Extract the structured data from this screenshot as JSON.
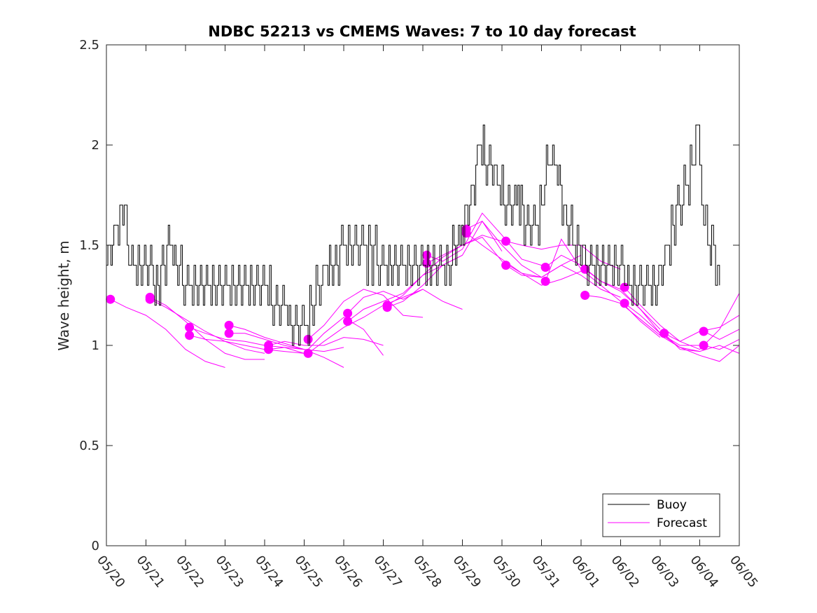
{
  "chart_data": {
    "type": "line",
    "title": "NDBC 52213 vs CMEMS Waves: 7 to 10 day forecast",
    "xlabel": "",
    "ylabel": "Wave height, m",
    "x_ticks": [
      "05/20",
      "05/21",
      "05/22",
      "05/23",
      "05/24",
      "05/25",
      "05/26",
      "05/27",
      "05/28",
      "05/29",
      "05/30",
      "05/31",
      "06/01",
      "06/02",
      "06/03",
      "06/04",
      "06/05"
    ],
    "y_ticks": [
      "0",
      "0.5",
      "1",
      "1.5",
      "2",
      "2.5"
    ],
    "xlim_days": [
      0,
      16
    ],
    "ylim": [
      0,
      2.5
    ],
    "grid": false,
    "legend": {
      "position": "bottom-right",
      "entries": [
        "Buoy",
        "Forecast"
      ]
    },
    "colors": {
      "buoy": "#000000",
      "forecast": "#ff00ff"
    },
    "buoy": {
      "name": "Buoy",
      "x": [
        0.0,
        0.3,
        0.45,
        0.6,
        0.8,
        1.0,
        1.3,
        1.6,
        2.0,
        2.3,
        2.6,
        3.0,
        3.3,
        3.6,
        4.0,
        4.25,
        4.5,
        4.7,
        4.9,
        5.0,
        5.1,
        5.3,
        5.6,
        5.9,
        6.2,
        6.5,
        6.8,
        7.1,
        7.4,
        7.7,
        8.0,
        8.3,
        8.6,
        8.9,
        9.1,
        9.3,
        9.45,
        9.6,
        9.8,
        10.0,
        10.2,
        10.4,
        10.6,
        10.8,
        11.0,
        11.2,
        11.4,
        11.6,
        11.9,
        12.2,
        12.5,
        12.8,
        13.1,
        13.4,
        13.7,
        14.0,
        14.2,
        14.4,
        14.6,
        14.8,
        14.9,
        15.0,
        15.1,
        15.2,
        15.3,
        15.4,
        15.5
      ],
      "y": [
        1.4,
        1.6,
        1.7,
        1.4,
        1.4,
        1.4,
        1.3,
        1.5,
        1.3,
        1.3,
        1.3,
        1.3,
        1.3,
        1.3,
        1.3,
        1.2,
        1.2,
        1.1,
        1.1,
        1.05,
        1.15,
        1.25,
        1.4,
        1.45,
        1.5,
        1.45,
        1.45,
        1.4,
        1.4,
        1.4,
        1.4,
        1.35,
        1.4,
        1.5,
        1.65,
        1.8,
        2.0,
        1.9,
        1.85,
        1.75,
        1.7,
        1.75,
        1.6,
        1.55,
        1.7,
        1.95,
        1.85,
        1.6,
        1.5,
        1.4,
        1.4,
        1.4,
        1.35,
        1.3,
        1.25,
        1.35,
        1.5,
        1.65,
        1.75,
        1.9,
        2.1,
        1.9,
        1.6,
        1.5,
        1.5,
        1.45,
        1.3
      ]
    },
    "forecast": [
      {
        "name": "Forecast",
        "x": [
          0.1,
          0.5,
          1.0,
          1.5,
          2.0,
          2.5,
          3.0
        ],
        "y": [
          1.23,
          1.19,
          1.15,
          1.08,
          0.98,
          0.92,
          0.89
        ]
      },
      {
        "name": "Forecast",
        "x": [
          1.1,
          1.5,
          2.0,
          2.5,
          3.0,
          3.5,
          4.0
        ],
        "y": [
          1.24,
          1.2,
          1.12,
          1.03,
          0.96,
          0.93,
          0.93
        ]
      },
      {
        "name": "Forecast",
        "x": [
          1.1,
          1.5,
          2.0,
          2.5,
          3.0,
          3.5,
          4.0
        ],
        "y": [
          1.23,
          1.19,
          1.13,
          1.07,
          1.02,
          0.98,
          0.96
        ]
      },
      {
        "name": "Forecast",
        "x": [
          2.1,
          2.5,
          3.0,
          3.5,
          4.0,
          4.5,
          5.0
        ],
        "y": [
          1.09,
          1.06,
          1.03,
          1.02,
          1.0,
          0.99,
          0.98
        ]
      },
      {
        "name": "Forecast",
        "x": [
          2.1,
          2.5,
          3.0,
          3.5,
          4.0,
          4.5,
          5.0
        ],
        "y": [
          1.05,
          1.03,
          1.02,
          1.0,
          0.98,
          0.97,
          0.96
        ]
      },
      {
        "name": "Forecast",
        "x": [
          3.1,
          3.5,
          4.0,
          4.5,
          5.0,
          5.5,
          6.0
        ],
        "y": [
          1.1,
          1.08,
          1.04,
          1.01,
          0.98,
          0.94,
          0.89
        ]
      },
      {
        "name": "Forecast",
        "x": [
          3.1,
          3.5,
          4.0,
          4.5,
          5.0,
          5.5,
          6.0
        ],
        "y": [
          1.06,
          1.06,
          1.03,
          1.0,
          0.98,
          0.97,
          0.99
        ]
      },
      {
        "name": "Forecast",
        "x": [
          4.1,
          4.5,
          5.0,
          5.5,
          6.0,
          6.5,
          7.0
        ],
        "y": [
          1.0,
          1.02,
          1.0,
          1.0,
          1.04,
          1.03,
          1.0
        ]
      },
      {
        "name": "Forecast",
        "x": [
          4.1,
          4.5,
          5.0,
          5.5,
          6.0,
          6.5,
          7.0
        ],
        "y": [
          0.98,
          0.99,
          0.96,
          1.06,
          1.14,
          1.08,
          0.95
        ]
      },
      {
        "name": "Forecast",
        "x": [
          5.1,
          5.5,
          6.0,
          6.5,
          7.0,
          7.5,
          8.0
        ],
        "y": [
          1.03,
          1.1,
          1.22,
          1.28,
          1.25,
          1.15,
          1.14
        ]
      },
      {
        "name": "Forecast",
        "x": [
          5.1,
          5.5,
          6.0,
          6.5,
          7.0,
          7.5,
          8.0
        ],
        "y": [
          0.96,
          1.02,
          1.09,
          1.14,
          1.2,
          1.24,
          1.28
        ]
      },
      {
        "name": "Forecast",
        "x": [
          6.1,
          6.5,
          7.0,
          7.5,
          8.0,
          8.5,
          9.0
        ],
        "y": [
          1.16,
          1.24,
          1.27,
          1.23,
          1.28,
          1.22,
          1.18
        ]
      },
      {
        "name": "Forecast",
        "x": [
          6.1,
          6.5,
          7.0,
          7.5,
          8.0,
          8.5,
          9.0
        ],
        "y": [
          1.12,
          1.18,
          1.22,
          1.26,
          1.35,
          1.4,
          1.45
        ]
      },
      {
        "name": "Forecast",
        "x": [
          7.1,
          7.5,
          8.0,
          8.5,
          9.0,
          9.5,
          10.0
        ],
        "y": [
          1.2,
          1.25,
          1.35,
          1.44,
          1.5,
          1.55,
          1.52
        ]
      },
      {
        "name": "Forecast",
        "x": [
          7.1,
          7.5,
          8.0,
          8.5,
          9.0,
          9.5,
          10.0
        ],
        "y": [
          1.19,
          1.22,
          1.3,
          1.4,
          1.45,
          1.62,
          1.47
        ]
      },
      {
        "name": "Forecast",
        "x": [
          8.1,
          8.5,
          9.0,
          9.5,
          10.0,
          10.5,
          11.0
        ],
        "y": [
          1.45,
          1.42,
          1.48,
          1.66,
          1.55,
          1.43,
          1.4
        ]
      },
      {
        "name": "Forecast",
        "x": [
          8.1,
          8.5,
          9.0,
          9.5,
          10.0,
          10.5,
          11.0
        ],
        "y": [
          1.41,
          1.45,
          1.5,
          1.54,
          1.42,
          1.36,
          1.34
        ]
      },
      {
        "name": "Forecast",
        "x": [
          9.1,
          9.5,
          10.0,
          10.5,
          11.0,
          11.5,
          12.0
        ],
        "y": [
          1.58,
          1.62,
          1.5,
          1.4,
          1.34,
          1.4,
          1.45
        ]
      },
      {
        "name": "Forecast",
        "x": [
          9.1,
          9.5,
          10.0,
          10.5,
          11.0,
          11.5,
          12.0
        ],
        "y": [
          1.56,
          1.5,
          1.43,
          1.36,
          1.3,
          1.33,
          1.37
        ]
      },
      {
        "name": "Forecast",
        "x": [
          10.1,
          10.5,
          11.0,
          11.5,
          12.0,
          12.5,
          13.0
        ],
        "y": [
          1.52,
          1.5,
          1.48,
          1.5,
          1.5,
          1.42,
          1.38
        ]
      },
      {
        "name": "Forecast",
        "x": [
          10.1,
          10.5,
          11.0,
          11.5,
          12.0,
          12.5,
          13.0
        ],
        "y": [
          1.4,
          1.35,
          1.34,
          1.4,
          1.35,
          1.28,
          1.24
        ]
      },
      {
        "name": "Forecast",
        "x": [
          11.1,
          11.5,
          12.0,
          12.5,
          13.0,
          13.5,
          14.0
        ],
        "y": [
          1.39,
          1.45,
          1.4,
          1.32,
          1.28,
          1.18,
          1.08
        ]
      },
      {
        "name": "Forecast",
        "x": [
          11.1,
          11.5,
          12.0,
          12.5,
          13.0,
          13.5,
          14.0
        ],
        "y": [
          1.32,
          1.53,
          1.38,
          1.3,
          1.22,
          1.12,
          1.04
        ]
      },
      {
        "name": "Forecast",
        "x": [
          12.1,
          12.5,
          13.0,
          13.5,
          14.0,
          14.5,
          15.0
        ],
        "y": [
          1.38,
          1.32,
          1.27,
          1.18,
          1.06,
          1.0,
          1.0
        ]
      },
      {
        "name": "Forecast",
        "x": [
          12.1,
          12.5,
          13.0,
          13.5,
          14.0,
          14.5,
          15.0
        ],
        "y": [
          1.25,
          1.24,
          1.21,
          1.13,
          1.05,
          0.99,
          0.97
        ]
      },
      {
        "name": "Forecast",
        "x": [
          13.1,
          13.5,
          14.0,
          14.5,
          15.0,
          15.5,
          16.0
        ],
        "y": [
          1.29,
          1.2,
          1.1,
          1.02,
          0.98,
          1.08,
          1.26
        ]
      },
      {
        "name": "Forecast",
        "x": [
          13.1,
          13.5,
          14.0,
          14.5,
          15.0,
          15.5,
          16.0
        ],
        "y": [
          1.21,
          1.15,
          1.06,
          0.99,
          0.95,
          0.92,
          1.0
        ]
      },
      {
        "name": "Forecast",
        "x": [
          14.1,
          14.5,
          15.0,
          15.5,
          16.0
        ],
        "y": [
          1.06,
          1.02,
          1.07,
          1.09,
          1.15
        ]
      },
      {
        "name": "Forecast",
        "x": [
          14.1,
          14.5,
          15.0,
          15.5,
          16.0
        ],
        "y": [
          1.06,
          0.98,
          0.97,
          1.0,
          0.96
        ]
      },
      {
        "name": "Forecast",
        "x": [
          15.1,
          15.5,
          16.0
        ],
        "y": [
          1.07,
          1.03,
          1.08
        ]
      },
      {
        "name": "Forecast",
        "x": [
          15.1,
          15.5,
          16.0
        ],
        "y": [
          1.0,
          0.98,
          1.03
        ]
      }
    ]
  }
}
